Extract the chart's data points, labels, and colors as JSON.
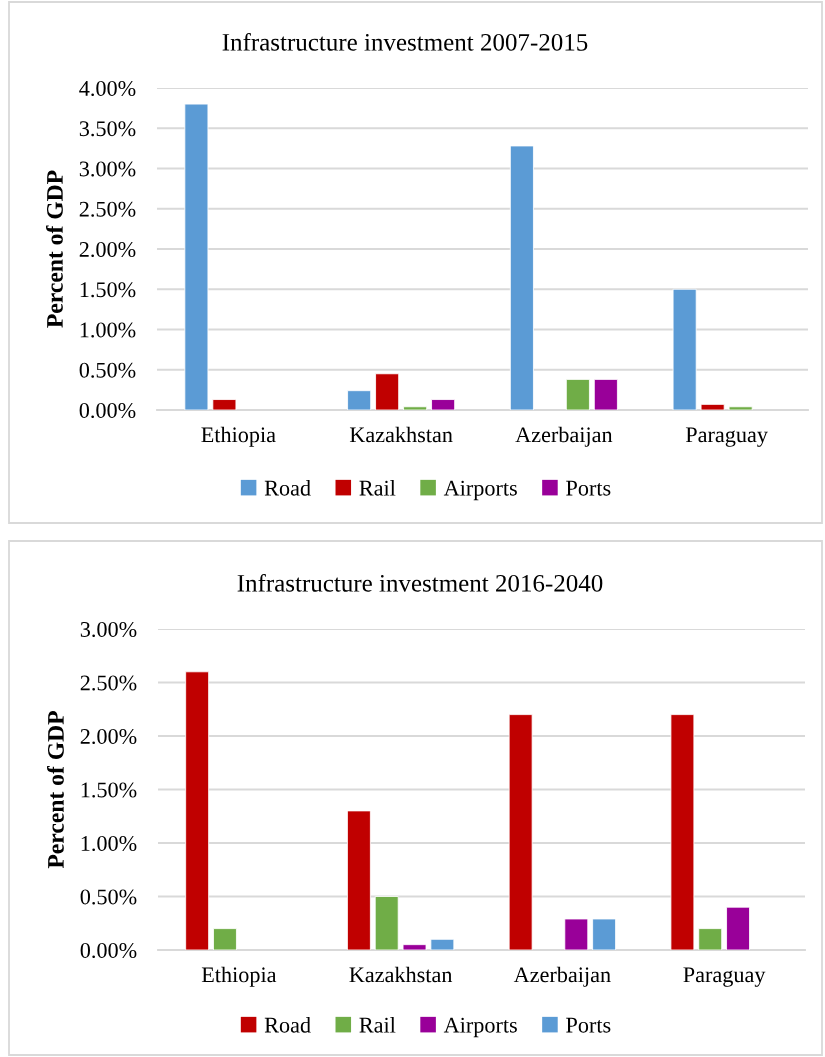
{
  "chart_data": [
    {
      "type": "bar",
      "title": "Infrastructure investment 2007-2015",
      "ylabel": "Percent of GDP",
      "categories": [
        "Ethiopia",
        "Kazakhstan",
        "Azerbaijan",
        "Paraguay"
      ],
      "series": [
        {
          "name": "Road",
          "color": "#5b9bd5",
          "values": [
            3.8,
            0.24,
            3.28,
            1.5
          ]
        },
        {
          "name": "Rail",
          "color": "#c00000",
          "values": [
            0.13,
            0.45,
            null,
            0.07
          ]
        },
        {
          "name": "Airports",
          "color": "#70ad47",
          "values": [
            null,
            0.04,
            0.38,
            0.04
          ]
        },
        {
          "name": "Ports",
          "color": "#990099",
          "values": [
            null,
            0.13,
            0.38,
            null
          ]
        }
      ],
      "ylim": [
        0,
        4
      ],
      "yticks": [
        {
          "value": 0,
          "label": "0.00%"
        },
        {
          "value": 0.5,
          "label": "0.50%"
        },
        {
          "value": 1,
          "label": "1.00%"
        },
        {
          "value": 1.5,
          "label": "1.50%"
        },
        {
          "value": 2,
          "label": "2.00%"
        },
        {
          "value": 2.5,
          "label": "2.50%"
        },
        {
          "value": 3,
          "label": "3.00%"
        },
        {
          "value": 3.5,
          "label": "3.50%"
        },
        {
          "value": 4,
          "label": "4.00%"
        }
      ],
      "grid": "y",
      "legend": "bottom"
    },
    {
      "type": "bar",
      "title": "Infrastructure investment 2016-2040",
      "ylabel": "Percent of GDP",
      "categories": [
        "Ethiopia",
        "Kazakhstan",
        "Azerbaijan",
        "Paraguay"
      ],
      "series": [
        {
          "name": "Road",
          "color": "#c00000",
          "values": [
            2.6,
            1.3,
            2.2,
            2.2
          ]
        },
        {
          "name": "Rail",
          "color": "#70ad47",
          "values": [
            0.2,
            0.5,
            null,
            0.2
          ]
        },
        {
          "name": "Airports",
          "color": "#990099",
          "values": [
            null,
            0.05,
            0.29,
            0.4
          ]
        },
        {
          "name": "Ports",
          "color": "#5b9bd5",
          "values": [
            null,
            0.1,
            0.29,
            null
          ]
        }
      ],
      "ylim": [
        0,
        3
      ],
      "yticks": [
        {
          "value": 0,
          "label": "0.00%"
        },
        {
          "value": 0.5,
          "label": "0.50%"
        },
        {
          "value": 1,
          "label": "1.00%"
        },
        {
          "value": 1.5,
          "label": "1.50%"
        },
        {
          "value": 2,
          "label": "2.00%"
        },
        {
          "value": 2.5,
          "label": "2.50%"
        },
        {
          "value": 3,
          "label": "3.00%"
        }
      ],
      "grid": "y",
      "legend": "bottom"
    }
  ]
}
